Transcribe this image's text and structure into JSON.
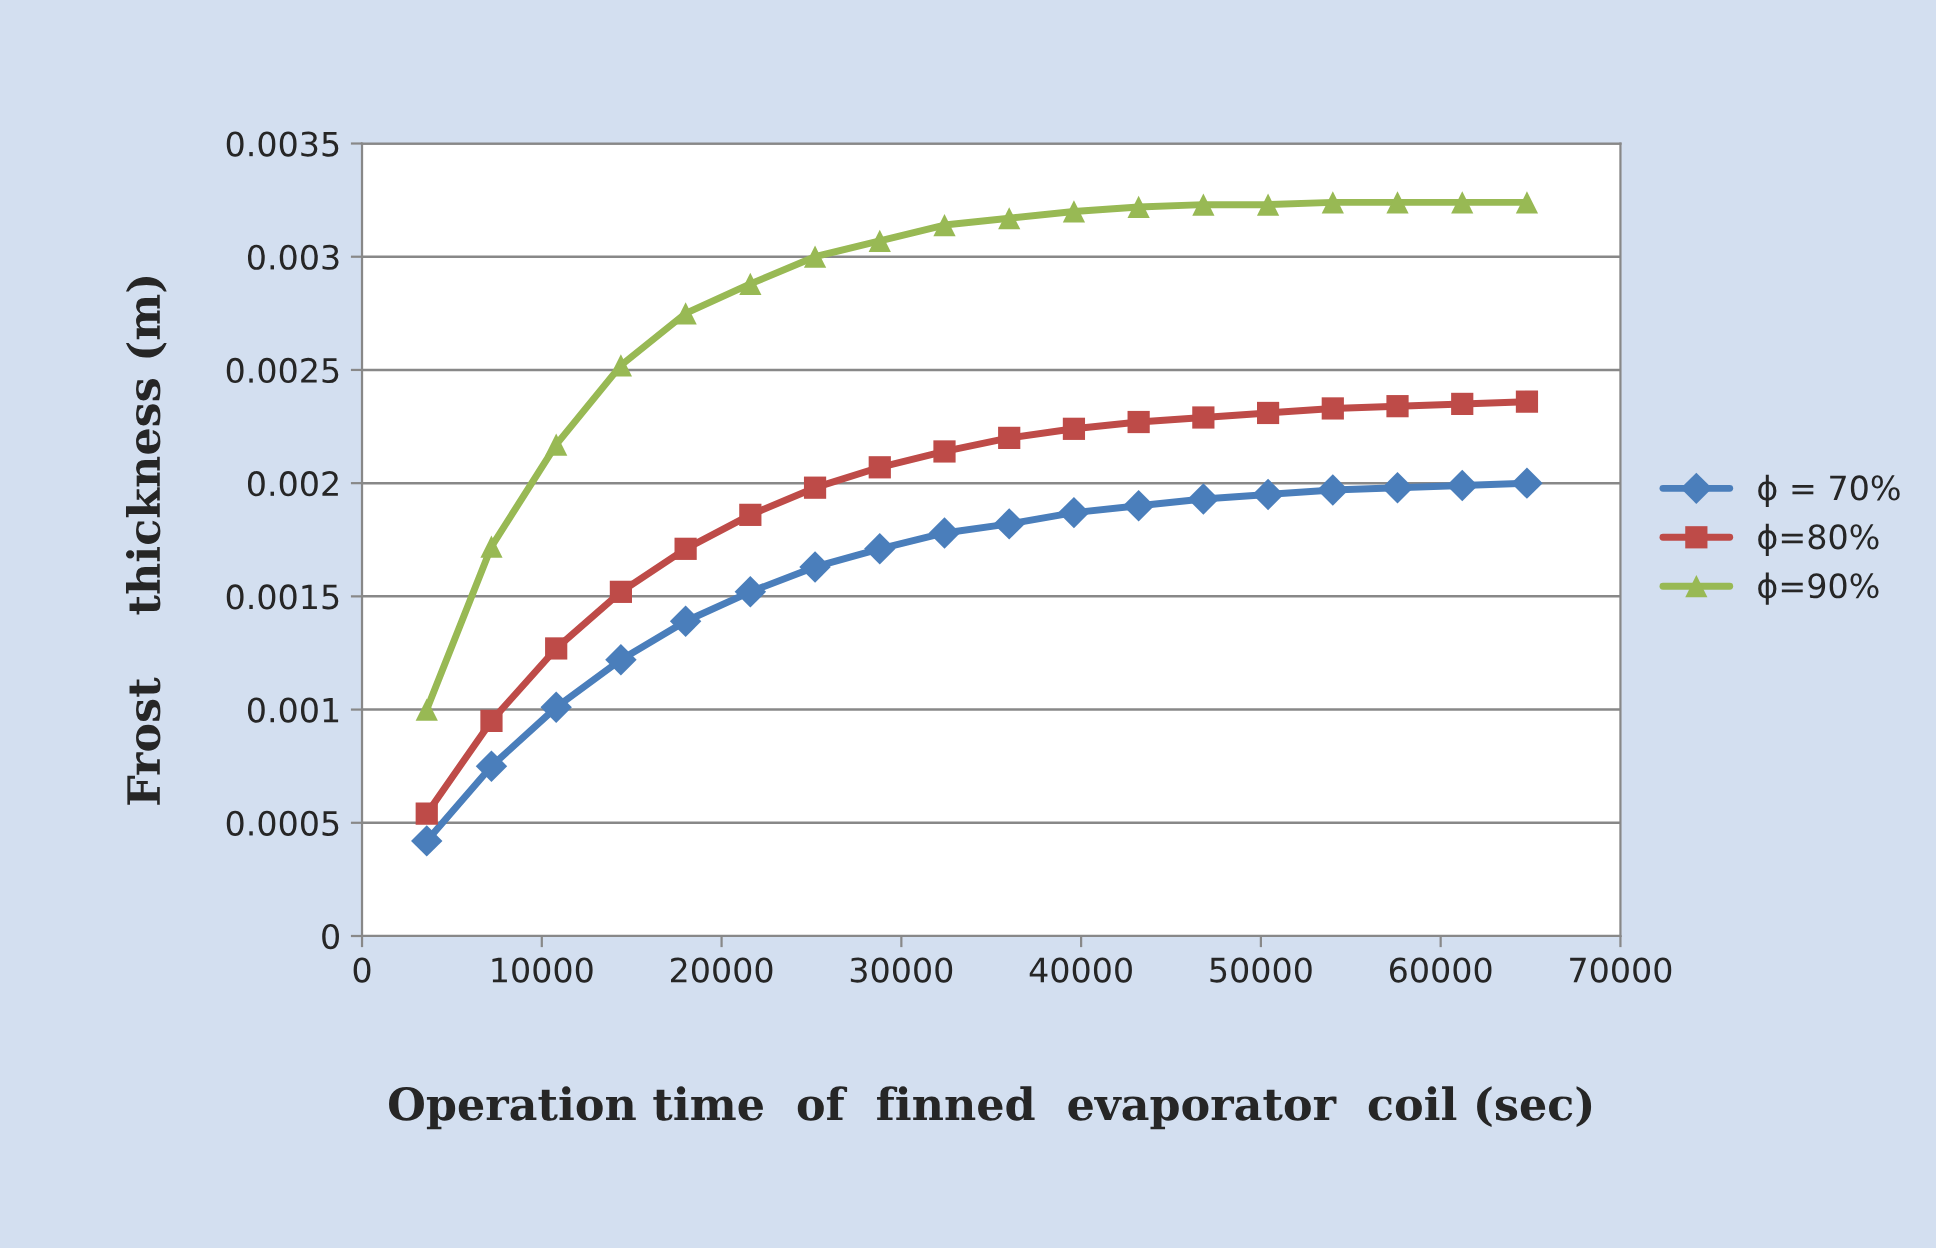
{
  "chart_data": {
    "type": "line",
    "xlabel": "Operation time  of  finned  evaporator  coil (sec)",
    "ylabel": "Frost    thickness (m)",
    "x": [
      3600,
      7200,
      10800,
      14400,
      18000,
      21600,
      25200,
      28800,
      32400,
      36000,
      39600,
      43200,
      46800,
      50400,
      54000,
      57600,
      61200,
      64800
    ],
    "series": [
      {
        "name": "ϕ = 70%",
        "color": "#4a7ebb",
        "marker": "diamond",
        "values": [
          0.00042,
          0.00075,
          0.00101,
          0.00122,
          0.00139,
          0.00152,
          0.00163,
          0.00171,
          0.00178,
          0.00182,
          0.00187,
          0.0019,
          0.00193,
          0.00195,
          0.00197,
          0.00198,
          0.00199,
          0.002
        ]
      },
      {
        "name": "ϕ=80%",
        "color": "#be4b48",
        "marker": "square",
        "values": [
          0.00054,
          0.00095,
          0.00127,
          0.00152,
          0.00171,
          0.00186,
          0.00198,
          0.00207,
          0.00214,
          0.0022,
          0.00224,
          0.00227,
          0.00229,
          0.00231,
          0.00233,
          0.00234,
          0.00235,
          0.00236
        ]
      },
      {
        "name": "ϕ=90%",
        "color": "#98b954",
        "marker": "triangle",
        "values": [
          0.001,
          0.00172,
          0.00217,
          0.00252,
          0.00275,
          0.00288,
          0.003,
          0.00307,
          0.00314,
          0.00317,
          0.0032,
          0.00322,
          0.00323,
          0.00323,
          0.00324,
          0.00324,
          0.00324,
          0.00324
        ]
      }
    ],
    "xlim": [
      0,
      70000
    ],
    "xticks": [
      0,
      10000,
      20000,
      30000,
      40000,
      50000,
      60000,
      70000
    ],
    "ylim": [
      0,
      0.0035
    ],
    "yticks": [
      0,
      0.0005,
      0.001,
      0.0015,
      0.002,
      0.0025,
      0.003,
      0.0035
    ],
    "grid": "y",
    "legend": "right",
    "line_style": "solid"
  }
}
